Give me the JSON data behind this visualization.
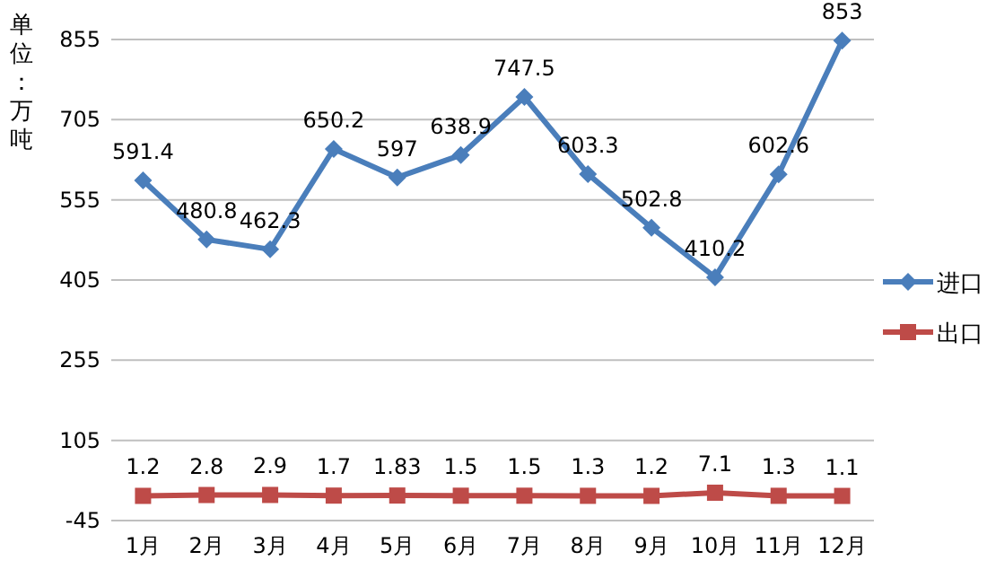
{
  "chart_data": {
    "type": "line",
    "ylabel": "单位：万吨",
    "categories": [
      "1月",
      "2月",
      "3月",
      "4月",
      "5月",
      "6月",
      "7月",
      "8月",
      "9月",
      "10月",
      "11月",
      "12月"
    ],
    "series": [
      {
        "name": "进口",
        "color": "#4a7ebb",
        "marker": "diamond",
        "values": [
          591.4,
          480.8,
          462.3,
          650.2,
          597,
          638.9,
          747.5,
          603.3,
          502.8,
          410.2,
          602.6,
          853
        ]
      },
      {
        "name": "出口",
        "color": "#be4b48",
        "marker": "square",
        "values": [
          1.2,
          2.8,
          2.9,
          1.7,
          1.83,
          1.5,
          1.5,
          1.3,
          1.2,
          7.1,
          1.3,
          1.1
        ]
      }
    ],
    "ylim": [
      -45,
      855
    ],
    "yticks": [
      -45,
      105,
      255,
      405,
      555,
      705,
      855
    ],
    "grid": "y",
    "legend": "right",
    "data_labels": true,
    "line_style": "solid"
  }
}
